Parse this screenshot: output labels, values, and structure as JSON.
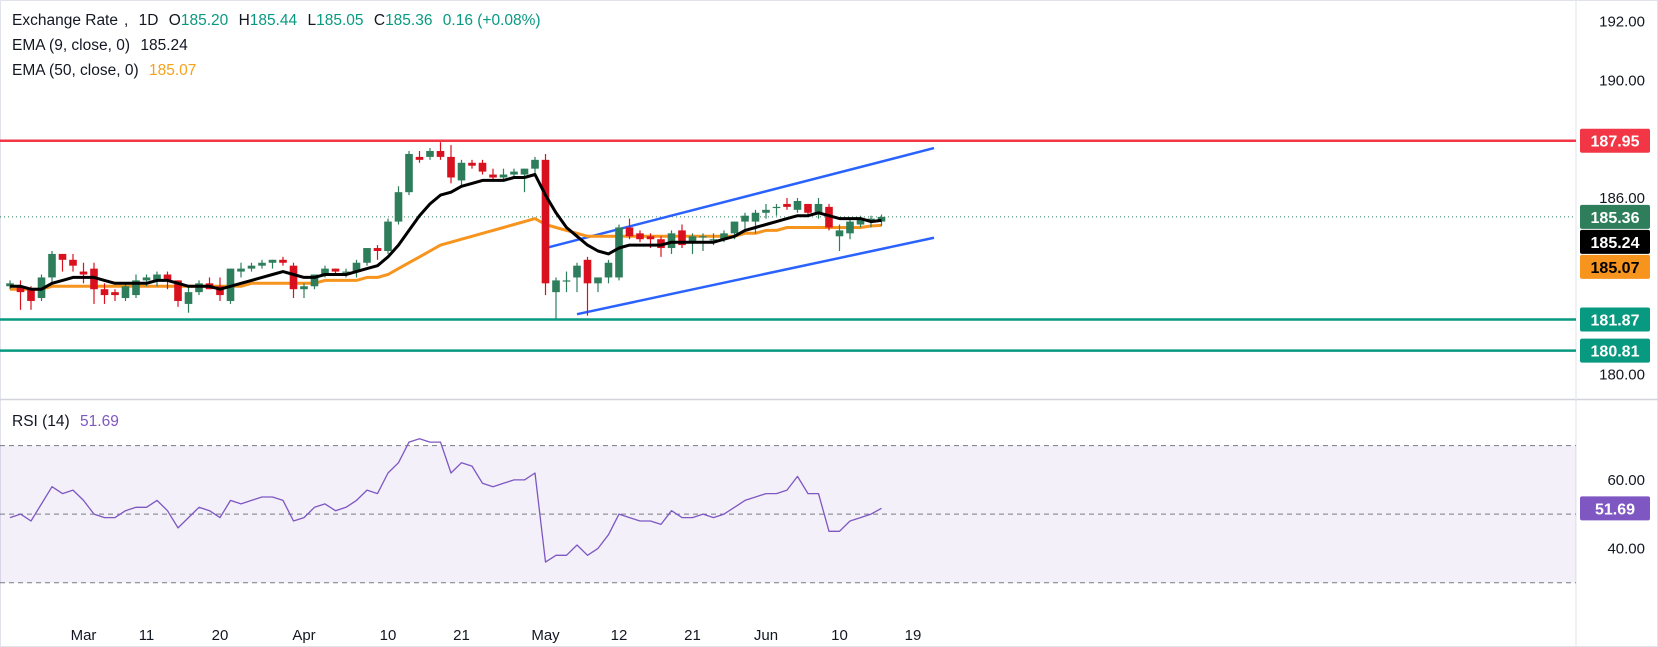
{
  "header": {
    "symbol": "Exchange Rate",
    "interval": "1D",
    "open_label": "O",
    "open": "185.20",
    "high_label": "H",
    "high": "185.44",
    "low_label": "L",
    "low": "185.05",
    "close_label": "C",
    "close": "185.36",
    "change": "0.16 (+0.08%)"
  },
  "ema9": {
    "label": "EMA (9, close, 0)",
    "value": "185.24",
    "color": "#000000"
  },
  "ema50": {
    "label": "EMA (50, close, 0)",
    "value": "185.07",
    "color": "#f7941d"
  },
  "rsi": {
    "label": "RSI (14)",
    "value": "51.69",
    "color": "#7e57c2"
  },
  "chart_data": [
    {
      "type": "candlestick",
      "title": "Exchange Rate, 1D",
      "ylim": [
        179.2,
        192.6
      ],
      "y_ticks": [
        180,
        186,
        190,
        192
      ],
      "y_tick_labels": [
        "180.00",
        "186.00",
        "190.00",
        "192.00"
      ],
      "x_tick_labels": [
        {
          "label": "Mar",
          "index": 7
        },
        {
          "label": "11",
          "index": 13
        },
        {
          "label": "20",
          "index": 20
        },
        {
          "label": "Apr",
          "index": 28
        },
        {
          "label": "10",
          "index": 36
        },
        {
          "label": "21",
          "index": 43
        },
        {
          "label": "May",
          "index": 51
        },
        {
          "label": "12",
          "index": 58
        },
        {
          "label": "21",
          "index": 65
        },
        {
          "label": "Jun",
          "index": 72
        },
        {
          "label": "10",
          "index": 79
        },
        {
          "label": "19",
          "index": 86
        }
      ],
      "candles": [
        [
          183.0,
          183.2,
          182.9,
          183.1
        ],
        [
          183.0,
          183.2,
          182.2,
          182.8
        ],
        [
          182.9,
          183.0,
          182.2,
          182.5
        ],
        [
          182.6,
          183.4,
          182.5,
          183.3
        ],
        [
          183.3,
          184.2,
          183.1,
          184.1
        ],
        [
          184.1,
          184.1,
          183.5,
          183.9
        ],
        [
          183.9,
          184.1,
          183.5,
          183.7
        ],
        [
          183.5,
          183.8,
          183.1,
          183.4
        ],
        [
          183.6,
          183.8,
          182.4,
          182.9
        ],
        [
          182.9,
          183.1,
          182.4,
          182.7
        ],
        [
          182.8,
          182.9,
          182.5,
          182.7
        ],
        [
          182.6,
          183.1,
          182.5,
          183.0
        ],
        [
          182.7,
          183.4,
          182.6,
          183.2
        ],
        [
          183.2,
          183.4,
          183.0,
          183.3
        ],
        [
          183.2,
          183.5,
          183.0,
          183.4
        ],
        [
          183.4,
          183.5,
          182.9,
          183.2
        ],
        [
          183.2,
          183.2,
          182.3,
          182.5
        ],
        [
          182.4,
          183.0,
          182.1,
          182.8
        ],
        [
          182.8,
          183.2,
          182.7,
          183.1
        ],
        [
          183.1,
          183.3,
          182.9,
          182.9
        ],
        [
          183.0,
          183.3,
          182.5,
          182.7
        ],
        [
          182.5,
          183.6,
          182.4,
          183.6
        ],
        [
          183.5,
          183.8,
          183.3,
          183.6
        ],
        [
          183.6,
          183.8,
          183.5,
          183.7
        ],
        [
          183.7,
          183.9,
          183.6,
          183.8
        ],
        [
          183.8,
          183.9,
          183.6,
          183.9
        ],
        [
          183.9,
          184.0,
          183.7,
          183.8
        ],
        [
          183.7,
          183.8,
          182.6,
          182.9
        ],
        [
          182.9,
          183.1,
          182.6,
          183.0
        ],
        [
          183.0,
          183.4,
          182.9,
          183.4
        ],
        [
          183.4,
          183.7,
          183.3,
          183.6
        ],
        [
          183.6,
          183.6,
          183.4,
          183.5
        ],
        [
          183.5,
          183.6,
          183.3,
          183.5
        ],
        [
          183.5,
          183.9,
          183.3,
          183.8
        ],
        [
          183.8,
          184.3,
          183.7,
          184.3
        ],
        [
          184.3,
          184.4,
          183.9,
          184.2
        ],
        [
          184.2,
          185.3,
          184.1,
          185.2
        ],
        [
          185.2,
          186.4,
          185.1,
          186.2
        ],
        [
          186.2,
          187.6,
          186.1,
          187.5
        ],
        [
          187.4,
          187.6,
          187.2,
          187.3
        ],
        [
          187.4,
          187.7,
          187.3,
          187.6
        ],
        [
          187.6,
          187.9,
          187.3,
          187.4
        ],
        [
          187.4,
          187.8,
          186.5,
          186.7
        ],
        [
          186.6,
          187.3,
          186.4,
          187.2
        ],
        [
          187.2,
          187.3,
          187.0,
          187.1
        ],
        [
          187.2,
          187.3,
          186.8,
          186.9
        ],
        [
          186.8,
          187.0,
          186.6,
          186.7
        ],
        [
          186.7,
          187.0,
          186.6,
          186.8
        ],
        [
          186.8,
          187.0,
          186.7,
          186.9
        ],
        [
          186.8,
          187.0,
          186.2,
          187.0
        ],
        [
          187.0,
          187.4,
          186.8,
          187.3
        ],
        [
          187.3,
          187.5,
          182.7,
          183.1
        ],
        [
          182.8,
          183.3,
          181.9,
          183.2
        ],
        [
          183.2,
          183.5,
          182.8,
          183.2
        ],
        [
          183.3,
          183.8,
          182.8,
          183.7
        ],
        [
          183.9,
          184.0,
          182.0,
          183.1
        ],
        [
          183.1,
          183.3,
          182.8,
          183.3
        ],
        [
          183.3,
          183.9,
          183.1,
          183.8
        ],
        [
          183.3,
          185.1,
          183.2,
          185.0
        ],
        [
          185.0,
          185.3,
          184.6,
          184.7
        ],
        [
          184.8,
          184.9,
          184.5,
          184.6
        ],
        [
          184.7,
          184.8,
          184.3,
          184.6
        ],
        [
          184.6,
          184.7,
          184.0,
          184.3
        ],
        [
          184.3,
          184.9,
          184.1,
          184.8
        ],
        [
          184.9,
          185.1,
          184.3,
          184.4
        ],
        [
          184.5,
          184.8,
          184.1,
          184.7
        ],
        [
          184.7,
          184.8,
          184.2,
          184.7
        ],
        [
          184.6,
          184.8,
          184.4,
          184.6
        ],
        [
          184.6,
          184.9,
          184.5,
          184.8
        ],
        [
          184.8,
          185.2,
          184.6,
          185.2
        ],
        [
          185.2,
          185.5,
          184.9,
          185.4
        ],
        [
          185.2,
          185.6,
          184.8,
          185.5
        ],
        [
          185.5,
          185.8,
          185.3,
          185.6
        ],
        [
          185.7,
          185.8,
          185.4,
          185.7
        ],
        [
          185.8,
          186.0,
          185.6,
          185.7
        ],
        [
          185.6,
          186.0,
          185.5,
          185.9
        ],
        [
          185.8,
          185.8,
          185.4,
          185.5
        ],
        [
          185.5,
          186.0,
          185.3,
          185.8
        ],
        [
          185.7,
          185.8,
          184.9,
          185.0
        ],
        [
          184.7,
          185.1,
          184.2,
          184.9
        ],
        [
          184.8,
          185.3,
          184.6,
          185.2
        ],
        [
          185.1,
          185.4,
          185.0,
          185.3
        ],
        [
          185.2,
          185.4,
          185.0,
          185.3
        ],
        [
          185.2,
          185.44,
          185.05,
          185.36
        ]
      ],
      "ema9": [
        183.0,
        183.0,
        182.9,
        182.9,
        183.1,
        183.2,
        183.3,
        183.3,
        183.3,
        183.2,
        183.1,
        183.1,
        183.1,
        183.1,
        183.2,
        183.2,
        183.1,
        183.0,
        183.0,
        183.0,
        182.9,
        183.0,
        183.1,
        183.2,
        183.3,
        183.4,
        183.5,
        183.4,
        183.3,
        183.3,
        183.4,
        183.4,
        183.4,
        183.5,
        183.6,
        183.7,
        184.0,
        184.4,
        184.9,
        185.4,
        185.8,
        186.1,
        186.2,
        186.4,
        186.5,
        186.6,
        186.6,
        186.6,
        186.7,
        186.7,
        186.8,
        186.1,
        185.5,
        185.0,
        184.7,
        184.4,
        184.2,
        184.1,
        184.3,
        184.4,
        184.4,
        184.4,
        184.4,
        184.5,
        184.5,
        184.5,
        184.5,
        184.5,
        184.6,
        184.7,
        184.9,
        185.0,
        185.1,
        185.2,
        185.3,
        185.4,
        185.4,
        185.5,
        185.4,
        185.3,
        185.3,
        185.3,
        185.2,
        185.24
      ],
      "ema50": [
        182.9,
        182.9,
        182.9,
        182.9,
        183.0,
        183.0,
        183.0,
        183.0,
        183.0,
        183.0,
        183.0,
        183.0,
        183.0,
        183.0,
        183.0,
        183.0,
        183.0,
        183.0,
        183.0,
        183.0,
        183.0,
        183.0,
        183.0,
        183.1,
        183.1,
        183.1,
        183.1,
        183.1,
        183.1,
        183.1,
        183.2,
        183.2,
        183.2,
        183.2,
        183.3,
        183.3,
        183.4,
        183.6,
        183.8,
        184.0,
        184.2,
        184.4,
        184.5,
        184.6,
        184.7,
        184.8,
        184.9,
        185.0,
        185.1,
        185.2,
        185.3,
        185.1,
        185.0,
        184.9,
        184.8,
        184.7,
        184.7,
        184.7,
        184.7,
        184.7,
        184.7,
        184.7,
        184.7,
        184.7,
        184.7,
        184.7,
        184.7,
        184.7,
        184.7,
        184.7,
        184.8,
        184.8,
        184.9,
        184.9,
        185.0,
        185.0,
        185.0,
        185.0,
        185.0,
        185.0,
        185.0,
        185.0,
        185.05,
        185.07
      ],
      "horizontal_lines": [
        {
          "value": 187.95,
          "label": "187.95",
          "color": "#f23645"
        },
        {
          "value": 181.87,
          "label": "181.87",
          "color": "#089981"
        },
        {
          "value": 180.81,
          "label": "180.81",
          "color": "#089981"
        }
      ],
      "channel_lines": [
        {
          "x1": 51,
          "y1": 184.3,
          "x2": 88,
          "y2": 187.7,
          "color": "#2962ff"
        },
        {
          "x1": 54,
          "y1": 182.05,
          "x2": 88,
          "y2": 184.65,
          "color": "#2962ff"
        }
      ],
      "price_labels": [
        {
          "value": 185.36,
          "label": "185.36",
          "bg": "#2e7d5b",
          "fg": "#ffffff"
        },
        {
          "value": 185.24,
          "label": "185.24",
          "bg": "#000000",
          "fg": "#ffffff"
        },
        {
          "value": 185.07,
          "label": "185.07",
          "bg": "#f7941d",
          "fg": "#000000"
        }
      ],
      "colors": {
        "up": "#2e7d5b",
        "down": "#d9101d"
      }
    },
    {
      "type": "line",
      "title": "RSI (14)",
      "ylim": [
        20,
        83
      ],
      "y_ticks": [
        40,
        60
      ],
      "y_tick_labels": [
        "40.00",
        "60.00"
      ],
      "bands": {
        "upper": 70,
        "middle": 50,
        "lower": 30
      },
      "values": [
        49,
        50,
        48,
        53,
        58,
        56,
        57,
        54,
        50,
        49,
        49,
        51,
        52,
        52,
        54,
        51,
        46,
        49,
        52,
        51,
        49,
        54,
        53,
        54,
        55,
        55,
        54,
        48,
        49,
        52,
        53,
        51,
        52,
        54,
        57,
        56,
        62,
        65,
        71,
        72,
        71,
        71,
        62,
        65,
        64,
        59,
        58,
        59,
        60,
        60,
        62,
        36,
        38,
        38,
        41,
        38,
        40,
        44,
        50,
        49,
        48,
        48,
        47,
        51,
        49,
        49,
        50,
        49,
        50,
        52,
        54,
        55,
        56,
        56,
        57,
        61,
        56,
        56,
        45,
        45,
        48,
        49,
        50,
        51.69
      ],
      "color": "#7e57c2"
    }
  ]
}
